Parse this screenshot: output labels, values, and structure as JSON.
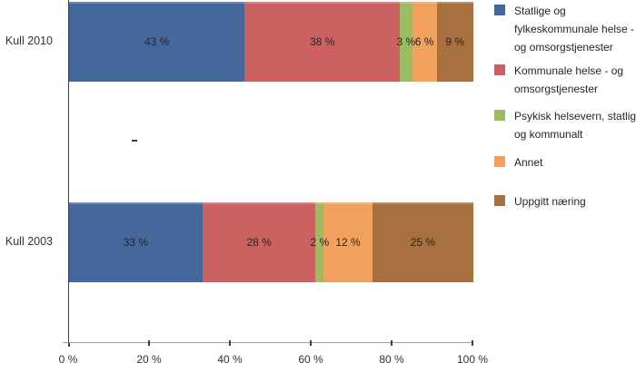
{
  "chart_data": {
    "type": "bar",
    "orientation": "horizontal",
    "stacked": true,
    "stacked_100_percent": true,
    "title": "",
    "xlabel": "",
    "ylabel": "",
    "grid": false,
    "categories": [
      "Kull 2010",
      "Kull 2003"
    ],
    "series": [
      {
        "name": "Statlige og fylkeskommunale helse - og omsorgstjenester",
        "color": "#44689B",
        "values": [
          43,
          33
        ]
      },
      {
        "name": "Kommunale helse - og omsorgstjenester",
        "color": "#CB6261",
        "values": [
          38,
          28
        ]
      },
      {
        "name": "Psykisk helsevern, statlig og kommunalt",
        "color": "#9DBB61",
        "values": [
          3,
          2
        ]
      },
      {
        "name": "Annet",
        "color": "#F1A15B",
        "values": [
          6,
          12
        ]
      },
      {
        "name": "Uppgitt næring",
        "color": "#A8703F",
        "values": [
          9,
          25
        ]
      }
    ],
    "value_labels": [
      [
        "43 %",
        "38 %",
        "3 %",
        "6 %",
        "9 %"
      ],
      [
        "33 %",
        "28 %",
        "2 %",
        "12 %",
        "25 %"
      ]
    ],
    "x_axis": {
      "min": 0,
      "max": 100,
      "ticks": [
        "0 %",
        "20 %",
        "40 %",
        "60 %",
        "80 %",
        "100 %"
      ]
    },
    "legend": {
      "position": "right",
      "items": [
        {
          "label": "Statlige og\nfylkeskommunale helse -\nog omsorgstjenester",
          "color": "#44689B"
        },
        {
          "label": "Kommunale helse - og\nomsorgstjenester",
          "color": "#CB6261"
        },
        {
          "label": "Psykisk helsevern, statlig\nog kommunalt",
          "color": "#9DBB61"
        },
        {
          "label": "Annet",
          "color": "#F1A15B"
        },
        {
          "label": "Uppgitt næring",
          "color": "#A8703F"
        }
      ]
    }
  },
  "colors": {
    "y_axis_line": "#3F3F3F",
    "x_axis_line": "#9B9B9B",
    "label_text": "#262626",
    "background": "#FFFFFF"
  }
}
